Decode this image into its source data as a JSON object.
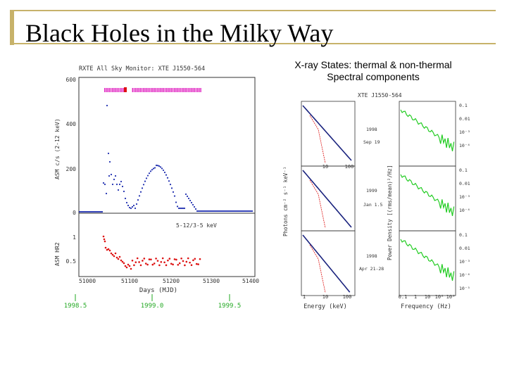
{
  "slide": {
    "title": "Black Holes in the Milky Way",
    "caption_line1": "X-ray States: thermal & non-thermal",
    "caption_line2": "Spectral components"
  },
  "left_figure": {
    "title": "RXTE All Sky Monitor: XTE J1550-564",
    "y_label_top": "ASM c/s (2-12 keV)",
    "y_label_bottom": "ASM HR2",
    "hr_label": "5-12/3-5 keV",
    "x_label": "Days (MJD)",
    "y_ticks_top": [
      "600",
      "400",
      "200",
      "0"
    ],
    "y_ticks_bottom": [
      "1",
      "0.5"
    ],
    "x_ticks": [
      "51000",
      "51100",
      "51200",
      "51300",
      "51400"
    ],
    "year_labels": [
      "1998.5",
      "1999.0",
      "1999.5"
    ],
    "colors": {
      "flux": "#1f2fb0",
      "hr": "#dd1111",
      "marks": "#e020c0",
      "years": "#22a822"
    }
  },
  "right_figure": {
    "title": "XTE J1550-564",
    "y_label_left": "Photons cm⁻² s⁻¹ keV⁻¹",
    "y_label_right": "Power Density [(rms/mean)²/Hz]",
    "x_label_left": "Energy (keV)",
    "x_label_right": "Frequency (Hz)",
    "energy_ticks": [
      "1",
      "10",
      "100"
    ],
    "freq_ticks": [
      "0.1",
      "1",
      "10",
      "10²",
      "10³"
    ],
    "psd_ticks": [
      "0.1",
      "0.01",
      "10⁻³",
      "10⁻⁴",
      "10⁻⁵"
    ],
    "annotations": [
      {
        "year": "1998",
        "date": "Sep 19"
      },
      {
        "year": "1999",
        "date": "Jan 1.5"
      },
      {
        "year": "1998",
        "date": "Apr 21-28"
      }
    ],
    "colors": {
      "spectrum": "#1a237e",
      "model": "#dd1111",
      "psd": "#22cc22"
    }
  }
}
